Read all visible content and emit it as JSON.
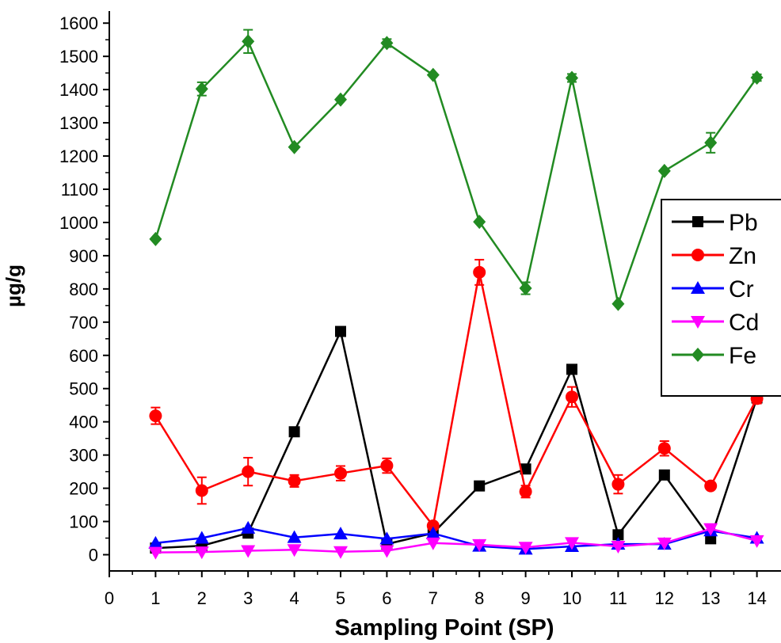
{
  "chart_data": {
    "type": "line",
    "xlabel": "Sampling Point (SP)",
    "ylabel": "µg/g",
    "xlim": [
      0,
      14
    ],
    "ylim": [
      -50,
      1600
    ],
    "xticks": [
      0,
      1,
      2,
      3,
      4,
      5,
      6,
      7,
      8,
      9,
      10,
      11,
      12,
      13,
      14
    ],
    "yticks": [
      0,
      100,
      200,
      300,
      400,
      500,
      600,
      700,
      800,
      900,
      1000,
      1100,
      1200,
      1300,
      1400,
      1500,
      1600
    ],
    "legend_position": "right",
    "grid": false,
    "x": [
      1,
      2,
      3,
      4,
      5,
      6,
      7,
      8,
      9,
      10,
      11,
      12,
      13,
      14
    ],
    "series": [
      {
        "name": "Pb",
        "color": "#000000",
        "marker": "square",
        "values": [
          20,
          27,
          65,
          370,
          672,
          32,
          65,
          207,
          258,
          558,
          60,
          240,
          48,
          472
        ],
        "errors": [
          0,
          0,
          0,
          0,
          0,
          0,
          0,
          0,
          0,
          0,
          0,
          0,
          0,
          12
        ]
      },
      {
        "name": "Zn",
        "color": "#ff0000",
        "marker": "circle",
        "values": [
          418,
          193,
          250,
          222,
          245,
          268,
          87,
          850,
          190,
          475,
          212,
          320,
          207,
          470
        ],
        "errors": [
          25,
          40,
          42,
          18,
          22,
          22,
          8,
          38,
          18,
          30,
          28,
          22,
          0,
          15
        ]
      },
      {
        "name": "Cr",
        "color": "#0000ff",
        "marker": "triangle-up",
        "values": [
          35,
          50,
          80,
          52,
          63,
          48,
          64,
          26,
          17,
          25,
          32,
          32,
          72,
          50
        ],
        "errors": [
          0,
          0,
          0,
          0,
          0,
          0,
          0,
          0,
          0,
          0,
          0,
          0,
          0,
          0
        ]
      },
      {
        "name": "Cd",
        "color": "#ff00ff",
        "marker": "triangle-down",
        "values": [
          7,
          8,
          12,
          15,
          9,
          12,
          35,
          30,
          22,
          36,
          25,
          35,
          78,
          42
        ],
        "errors": [
          0,
          0,
          0,
          0,
          0,
          0,
          0,
          0,
          0,
          0,
          0,
          0,
          0,
          0
        ]
      },
      {
        "name": "Fe",
        "color": "#228b22",
        "marker": "diamond",
        "values": [
          950,
          1402,
          1545,
          1227,
          1370,
          1540,
          1444,
          1002,
          802,
          1435,
          755,
          1155,
          1240,
          1436
        ],
        "errors": [
          0,
          20,
          35,
          0,
          0,
          12,
          0,
          0,
          18,
          12,
          0,
          0,
          30,
          10
        ]
      }
    ]
  }
}
